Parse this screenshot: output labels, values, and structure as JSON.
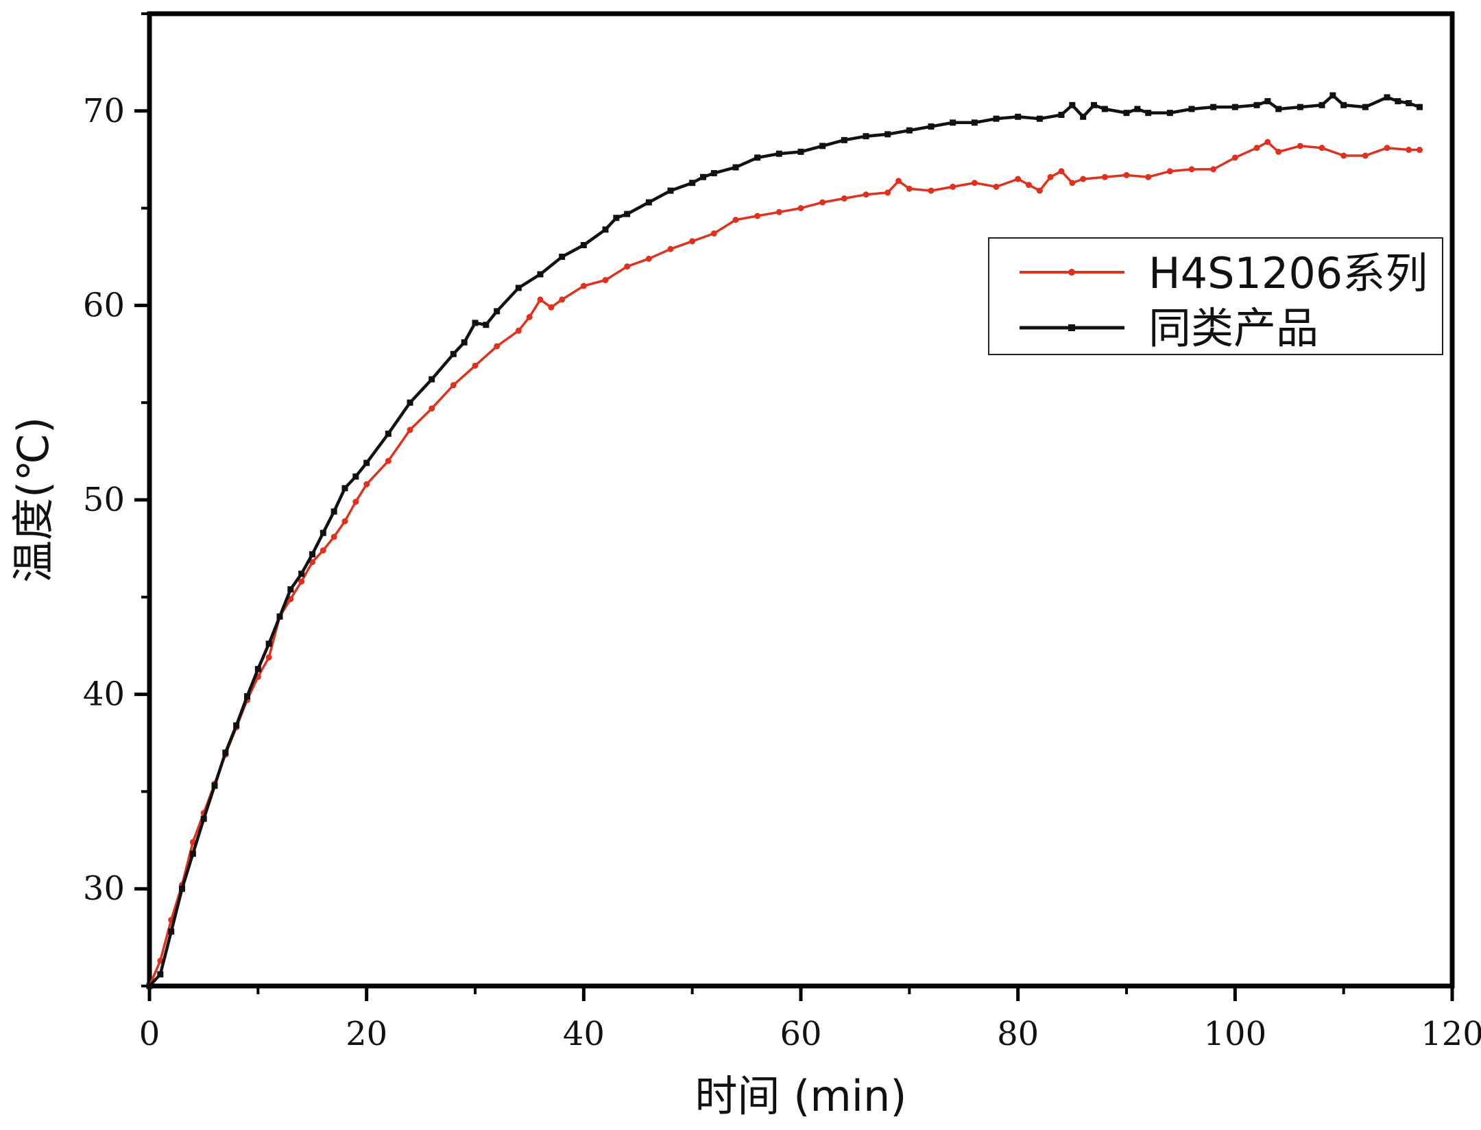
{
  "chart_data": {
    "type": "line",
    "xlabel": "时间 (min)",
    "ylabel": "温度(℃)",
    "xlim": [
      0,
      120
    ],
    "ylim": [
      25,
      75
    ],
    "xticks": [
      0,
      20,
      40,
      60,
      80,
      100,
      120
    ],
    "yticks": [
      30,
      40,
      50,
      60,
      70
    ],
    "grid": false,
    "legend": "right, upper-middle",
    "series": [
      {
        "name": "H4S1206系列",
        "color": "#e0301e",
        "marker": "circle",
        "x": [
          0,
          1,
          2,
          3,
          4,
          5,
          6,
          7,
          8,
          9,
          10,
          11,
          12,
          13,
          14,
          15,
          16,
          17,
          18,
          19,
          20,
          22,
          24,
          26,
          28,
          30,
          32,
          34,
          35,
          36,
          37,
          38,
          40,
          42,
          44,
          46,
          48,
          50,
          52,
          54,
          56,
          58,
          60,
          62,
          64,
          66,
          68,
          69,
          70,
          72,
          74,
          76,
          78,
          80,
          81,
          82,
          83,
          84,
          85,
          86,
          88,
          90,
          92,
          94,
          96,
          98,
          100,
          102,
          103,
          104,
          106,
          108,
          110,
          112,
          114,
          116,
          117
        ],
        "y": [
          25.0,
          26.3,
          28.4,
          30.2,
          32.4,
          33.9,
          35.4,
          36.9,
          38.3,
          39.7,
          40.9,
          41.9,
          44.0,
          44.9,
          45.8,
          46.8,
          47.4,
          48.1,
          48.9,
          49.9,
          50.8,
          52.0,
          53.6,
          54.7,
          55.9,
          56.9,
          57.9,
          58.7,
          59.4,
          60.3,
          59.9,
          60.3,
          61.0,
          61.3,
          62.0,
          62.4,
          62.9,
          63.3,
          63.7,
          64.4,
          64.6,
          64.8,
          65.0,
          65.3,
          65.5,
          65.7,
          65.8,
          66.4,
          66.0,
          65.9,
          66.1,
          66.3,
          66.1,
          66.5,
          66.2,
          65.9,
          66.6,
          66.9,
          66.3,
          66.5,
          66.6,
          66.7,
          66.6,
          66.9,
          67.0,
          67.0,
          67.6,
          68.1,
          68.4,
          67.9,
          68.2,
          68.1,
          67.7,
          67.7,
          68.1,
          68.0,
          68.0
        ]
      },
      {
        "name": "同类产品",
        "color": "#111111",
        "marker": "square",
        "x": [
          0,
          1,
          2,
          3,
          4,
          5,
          6,
          7,
          8,
          9,
          10,
          11,
          12,
          13,
          14,
          15,
          16,
          17,
          18,
          19,
          20,
          22,
          24,
          26,
          28,
          29,
          30,
          31,
          32,
          34,
          36,
          38,
          40,
          42,
          43,
          44,
          46,
          48,
          50,
          51,
          52,
          54,
          56,
          58,
          60,
          62,
          64,
          66,
          68,
          70,
          72,
          74,
          76,
          78,
          80,
          82,
          84,
          85,
          86,
          87,
          88,
          90,
          91,
          92,
          94,
          96,
          98,
          100,
          102,
          103,
          104,
          106,
          108,
          109,
          110,
          112,
          114,
          115,
          116,
          117
        ],
        "y": [
          25.0,
          25.6,
          27.8,
          30.0,
          31.8,
          33.6,
          35.3,
          37.0,
          38.4,
          39.9,
          41.3,
          42.6,
          44.0,
          45.4,
          46.2,
          47.2,
          48.3,
          49.4,
          50.6,
          51.2,
          51.9,
          53.4,
          55.0,
          56.2,
          57.5,
          58.1,
          59.1,
          59.0,
          59.7,
          60.9,
          61.6,
          62.5,
          63.1,
          63.9,
          64.5,
          64.7,
          65.3,
          65.9,
          66.3,
          66.6,
          66.8,
          67.1,
          67.6,
          67.8,
          67.9,
          68.2,
          68.5,
          68.7,
          68.8,
          69.0,
          69.2,
          69.4,
          69.4,
          69.6,
          69.7,
          69.6,
          69.8,
          70.3,
          69.7,
          70.3,
          70.1,
          69.9,
          70.1,
          69.9,
          69.9,
          70.1,
          70.2,
          70.2,
          70.3,
          70.5,
          70.1,
          70.2,
          70.3,
          70.8,
          70.3,
          70.2,
          70.7,
          70.5,
          70.4,
          70.2
        ]
      }
    ]
  }
}
